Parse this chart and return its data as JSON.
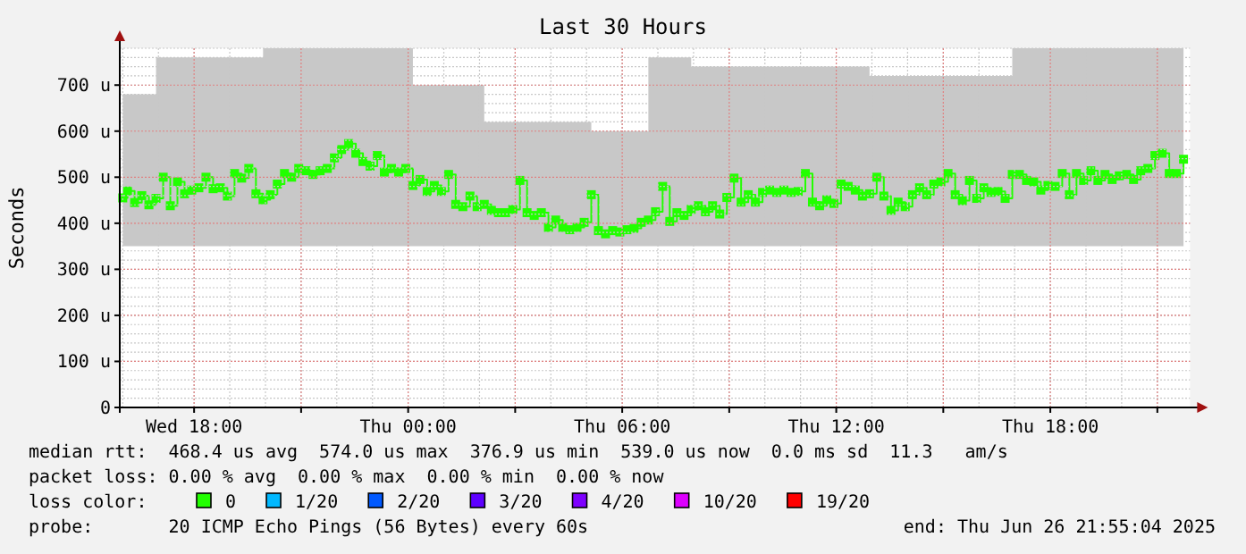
{
  "chart_data": {
    "type": "step",
    "title": "Last 30 Hours",
    "ylabel": "Seconds",
    "legend_title": "loss color:",
    "legend": "bottom",
    "grid": true,
    "marker": "square",
    "xlim": [
      "2025-06-25T15:55",
      "2025-06-26T21:55"
    ],
    "ylim": [
      0,
      780
    ],
    "xticks": [
      {
        "value": "2025-06-25T18:00",
        "label": "Wed 18:00"
      },
      {
        "value": "2025-06-25T21:00",
        "label": null
      },
      {
        "value": "2025-06-26T00:00",
        "label": "Thu 00:00"
      },
      {
        "value": "2025-06-26T03:00",
        "label": null
      },
      {
        "value": "2025-06-26T06:00",
        "label": "Thu 06:00"
      },
      {
        "value": "2025-06-26T09:00",
        "label": null
      },
      {
        "value": "2025-06-26T12:00",
        "label": "Thu 12:00"
      },
      {
        "value": "2025-06-26T15:00",
        "label": null
      },
      {
        "value": "2025-06-26T18:00",
        "label": "Thu 18:00"
      },
      {
        "value": "2025-06-26T21:00",
        "label": null
      }
    ],
    "yticks": [
      0,
      {
        "value": 100,
        "label": "100 u"
      },
      {
        "value": 200,
        "label": "200 u"
      },
      {
        "value": 300,
        "label": "300 u"
      },
      {
        "value": 400,
        "label": "400 u"
      },
      {
        "value": 500,
        "label": "500 u"
      },
      {
        "value": 600,
        "label": "600 u"
      },
      {
        "value": 700,
        "label": "700 u"
      }
    ],
    "x": [
      "2025-06-25T16:00",
      "2025-06-25T16:08",
      "2025-06-25T16:20",
      "2025-06-25T16:32",
      "2025-06-25T16:44",
      "2025-06-25T16:56",
      "2025-06-25T17:08",
      "2025-06-25T17:20",
      "2025-06-25T17:32",
      "2025-06-25T17:44",
      "2025-06-25T17:56",
      "2025-06-25T18:08",
      "2025-06-25T18:20",
      "2025-06-25T18:32",
      "2025-06-25T18:44",
      "2025-06-25T18:56",
      "2025-06-25T19:08",
      "2025-06-25T19:20",
      "2025-06-25T19:32",
      "2025-06-25T19:44",
      "2025-06-25T19:56",
      "2025-06-25T20:08",
      "2025-06-25T20:20",
      "2025-06-25T20:32",
      "2025-06-25T20:44",
      "2025-06-25T20:56",
      "2025-06-25T21:08",
      "2025-06-25T21:20",
      "2025-06-25T21:32",
      "2025-06-25T21:44",
      "2025-06-25T21:56",
      "2025-06-25T22:08",
      "2025-06-25T22:20",
      "2025-06-25T22:32",
      "2025-06-25T22:44",
      "2025-06-25T22:56",
      "2025-06-25T23:08",
      "2025-06-25T23:20",
      "2025-06-25T23:32",
      "2025-06-25T23:44",
      "2025-06-25T23:56",
      "2025-06-26T00:08",
      "2025-06-26T00:20",
      "2025-06-26T00:32",
      "2025-06-26T00:44",
      "2025-06-26T00:56",
      "2025-06-26T01:08",
      "2025-06-26T01:20",
      "2025-06-26T01:32",
      "2025-06-26T01:44",
      "2025-06-26T01:56",
      "2025-06-26T02:08",
      "2025-06-26T02:20",
      "2025-06-26T02:32",
      "2025-06-26T02:44",
      "2025-06-26T02:56",
      "2025-06-26T03:08",
      "2025-06-26T03:20",
      "2025-06-26T03:32",
      "2025-06-26T03:44",
      "2025-06-26T03:56",
      "2025-06-26T04:08",
      "2025-06-26T04:20",
      "2025-06-26T04:32",
      "2025-06-26T04:44",
      "2025-06-26T04:56",
      "2025-06-26T05:08",
      "2025-06-26T05:20",
      "2025-06-26T05:32",
      "2025-06-26T05:44",
      "2025-06-26T05:56",
      "2025-06-26T06:08",
      "2025-06-26T06:20",
      "2025-06-26T06:32",
      "2025-06-26T06:44",
      "2025-06-26T06:56",
      "2025-06-26T07:08",
      "2025-06-26T07:20",
      "2025-06-26T07:32",
      "2025-06-26T07:44",
      "2025-06-26T07:56",
      "2025-06-26T08:08",
      "2025-06-26T08:20",
      "2025-06-26T08:32",
      "2025-06-26T08:44",
      "2025-06-26T08:56",
      "2025-06-26T09:08",
      "2025-06-26T09:20",
      "2025-06-26T09:32",
      "2025-06-26T09:44",
      "2025-06-26T09:56",
      "2025-06-26T10:08",
      "2025-06-26T10:20",
      "2025-06-26T10:32",
      "2025-06-26T10:44",
      "2025-06-26T10:56",
      "2025-06-26T11:08",
      "2025-06-26T11:20",
      "2025-06-26T11:32",
      "2025-06-26T11:44",
      "2025-06-26T11:56",
      "2025-06-26T12:08",
      "2025-06-26T12:20",
      "2025-06-26T12:32",
      "2025-06-26T12:44",
      "2025-06-26T12:56",
      "2025-06-26T13:08",
      "2025-06-26T13:20",
      "2025-06-26T13:32",
      "2025-06-26T13:44",
      "2025-06-26T13:56",
      "2025-06-26T14:08",
      "2025-06-26T14:20",
      "2025-06-26T14:32",
      "2025-06-26T14:44",
      "2025-06-26T14:56",
      "2025-06-26T15:08",
      "2025-06-26T15:20",
      "2025-06-26T15:32",
      "2025-06-26T15:44",
      "2025-06-26T15:56",
      "2025-06-26T16:08",
      "2025-06-26T16:20",
      "2025-06-26T16:32",
      "2025-06-26T16:44",
      "2025-06-26T16:56",
      "2025-06-26T17:08",
      "2025-06-26T17:20",
      "2025-06-26T17:32",
      "2025-06-26T17:44",
      "2025-06-26T17:56",
      "2025-06-26T18:08",
      "2025-06-26T18:20",
      "2025-06-26T18:32",
      "2025-06-26T18:44",
      "2025-06-26T18:56",
      "2025-06-26T19:08",
      "2025-06-26T19:20",
      "2025-06-26T19:32",
      "2025-06-26T19:44",
      "2025-06-26T19:56",
      "2025-06-26T20:08",
      "2025-06-26T20:20",
      "2025-06-26T20:32",
      "2025-06-26T20:44",
      "2025-06-26T20:56",
      "2025-06-26T21:08",
      "2025-06-26T21:20",
      "2025-06-26T21:32",
      "2025-06-26T21:44"
    ],
    "series": [
      {
        "name": "0",
        "color": "#22ff00",
        "values": [
          455,
          470,
          445,
          460,
          440,
          454,
          500,
          438,
          490,
          464,
          472,
          477,
          500,
          475,
          477,
          459,
          508,
          498,
          519,
          464,
          451,
          462,
          485,
          508,
          500,
          519,
          514,
          506,
          514,
          519,
          542,
          560,
          573,
          552,
          534,
          524,
          547,
          511,
          519,
          511,
          519,
          482,
          495,
          469,
          482,
          469,
          506,
          441,
          436,
          459,
          436,
          441,
          428,
          423,
          423,
          430,
          493,
          423,
          417,
          423,
          391,
          407,
          391,
          386,
          391,
          402,
          462,
          384,
          377,
          384,
          381,
          386,
          389,
          402,
          407,
          425,
          480,
          404,
          423,
          417,
          430,
          438,
          425,
          438,
          420,
          456,
          498,
          446,
          462,
          446,
          467,
          472,
          467,
          472,
          467,
          469,
          508,
          446,
          438,
          451,
          443,
          485,
          480,
          472,
          459,
          464,
          500,
          459,
          428,
          446,
          436,
          462,
          477,
          462,
          485,
          490,
          508,
          462,
          449,
          493,
          454,
          477,
          467,
          469,
          454,
          506,
          506,
          493,
          490,
          472,
          482,
          480,
          508,
          462,
          508,
          493,
          514,
          493,
          506,
          495,
          503,
          506,
          495,
          514,
          519,
          547,
          552,
          508,
          508,
          539
        ],
        "lower": [
          350,
          350,
          350,
          350,
          350,
          350,
          350,
          350,
          350,
          350,
          350,
          350,
          350,
          350,
          350,
          350,
          350,
          350,
          350,
          350,
          350,
          350,
          350,
          350,
          350,
          350,
          350,
          350,
          350,
          350,
          350,
          350,
          350,
          350,
          350,
          350,
          350,
          350,
          350,
          350,
          350,
          350,
          350,
          350,
          350,
          350,
          350,
          350,
          350,
          350,
          350,
          350,
          350,
          350,
          350,
          350,
          350,
          350,
          350,
          350,
          350,
          350,
          350,
          350,
          350,
          350,
          350,
          350,
          350,
          350,
          350,
          350,
          350,
          350,
          350,
          350,
          350,
          350,
          350,
          350,
          350,
          350,
          350,
          350,
          350,
          350,
          350,
          350,
          350,
          350,
          350,
          350,
          350,
          350,
          350,
          350,
          350,
          350,
          350,
          350,
          350,
          350,
          350,
          350,
          350,
          350,
          350,
          350,
          350,
          350,
          350,
          350,
          350,
          350,
          350,
          350,
          350,
          350,
          350,
          350,
          350,
          350,
          350,
          350,
          350,
          350,
          350,
          350,
          350,
          350,
          350,
          350,
          350,
          350,
          350,
          350,
          350,
          350,
          350,
          350,
          350,
          350,
          350,
          350,
          350,
          350,
          350,
          350,
          350,
          350
        ],
        "upper": [
          680,
          680,
          680,
          680,
          680,
          760,
          760,
          760,
          760,
          760,
          760,
          760,
          760,
          760,
          760,
          760,
          760,
          760,
          760,
          760,
          780,
          780,
          780,
          780,
          780,
          780,
          780,
          780,
          780,
          780,
          780,
          780,
          780,
          780,
          780,
          780,
          780,
          780,
          780,
          780,
          780,
          700,
          700,
          700,
          700,
          700,
          700,
          700,
          700,
          700,
          700,
          620,
          620,
          620,
          620,
          620,
          620,
          620,
          620,
          620,
          620,
          620,
          620,
          620,
          620,
          620,
          600,
          600,
          600,
          600,
          600,
          600,
          600,
          600,
          760,
          760,
          760,
          760,
          760,
          760,
          740,
          740,
          740,
          740,
          740,
          740,
          740,
          740,
          740,
          740,
          740,
          740,
          740,
          740,
          740,
          740,
          740,
          740,
          740,
          740,
          740,
          740,
          740,
          740,
          740,
          720,
          720,
          720,
          720,
          720,
          720,
          720,
          720,
          720,
          720,
          720,
          720,
          720,
          720,
          720,
          720,
          720,
          720,
          720,
          720,
          780,
          780,
          780,
          780,
          780,
          780,
          780,
          780,
          780,
          780,
          780,
          780,
          780,
          780,
          780,
          780,
          780,
          780,
          780,
          780,
          780,
          780,
          780,
          780,
          780
        ]
      },
      {
        "name": "1/20",
        "color": "#00b8ff",
        "values": [
          null,
          null,
          null,
          null,
          null,
          null,
          null,
          null,
          null,
          null,
          null,
          null,
          null,
          null,
          null,
          null,
          null,
          null,
          null,
          null,
          null,
          null,
          null,
          null,
          null,
          null,
          null,
          null,
          null,
          null,
          null,
          null,
          null,
          null,
          null,
          null,
          null,
          null,
          null,
          null,
          null,
          null,
          null,
          null,
          null,
          null,
          null,
          null,
          null,
          null,
          null,
          null,
          null,
          null,
          null,
          null,
          null,
          null,
          null,
          null,
          null,
          null,
          null,
          null,
          null,
          null,
          null,
          null,
          null,
          null,
          null,
          null,
          null,
          null,
          null,
          null,
          null,
          null,
          null,
          null,
          null,
          null,
          null,
          null,
          null,
          null,
          null,
          null,
          null,
          null,
          null,
          null,
          null,
          null,
          null,
          null,
          null,
          null,
          null,
          null,
          null,
          null,
          null,
          null,
          null,
          null,
          null,
          null,
          null,
          null,
          null,
          null,
          null,
          null,
          null,
          null,
          null,
          null,
          null,
          null,
          null,
          null,
          null,
          null,
          null,
          null,
          null,
          null,
          null,
          null,
          null,
          null,
          null,
          null,
          null,
          null,
          null,
          null,
          null,
          null,
          null,
          null,
          null,
          null,
          null,
          null,
          null,
          null,
          null,
          null
        ]
      },
      {
        "name": "2/20",
        "color": "#0059ff",
        "values": [
          null,
          null,
          null,
          null,
          null,
          null,
          null,
          null,
          null,
          null,
          null,
          null,
          null,
          null,
          null,
          null,
          null,
          null,
          null,
          null,
          null,
          null,
          null,
          null,
          null,
          null,
          null,
          null,
          null,
          null,
          null,
          null,
          null,
          null,
          null,
          null,
          null,
          null,
          null,
          null,
          null,
          null,
          null,
          null,
          null,
          null,
          null,
          null,
          null,
          null,
          null,
          null,
          null,
          null,
          null,
          null,
          null,
          null,
          null,
          null,
          null,
          null,
          null,
          null,
          null,
          null,
          null,
          null,
          null,
          null,
          null,
          null,
          null,
          null,
          null,
          null,
          null,
          null,
          null,
          null,
          null,
          null,
          null,
          null,
          null,
          null,
          null,
          null,
          null,
          null,
          null,
          null,
          null,
          null,
          null,
          null,
          null,
          null,
          null,
          null,
          null,
          null,
          null,
          null,
          null,
          null,
          null,
          null,
          null,
          null,
          null,
          null,
          null,
          null,
          null,
          null,
          null,
          null,
          null,
          null,
          null,
          null,
          null,
          null,
          null,
          null,
          null,
          null,
          null,
          null,
          null,
          null,
          null,
          null,
          null,
          null,
          null,
          null,
          null,
          null,
          null,
          null,
          null,
          null,
          null,
          null,
          null,
          null,
          null,
          null
        ]
      },
      {
        "name": "3/20",
        "color": "#5e00ff",
        "values": [
          null,
          null,
          null,
          null,
          null,
          null,
          null,
          null,
          null,
          null,
          null,
          null,
          null,
          null,
          null,
          null,
          null,
          null,
          null,
          null,
          null,
          null,
          null,
          null,
          null,
          null,
          null,
          null,
          null,
          null,
          null,
          null,
          null,
          null,
          null,
          null,
          null,
          null,
          null,
          null,
          null,
          null,
          null,
          null,
          null,
          null,
          null,
          null,
          null,
          null,
          null,
          null,
          null,
          null,
          null,
          null,
          null,
          null,
          null,
          null,
          null,
          null,
          null,
          null,
          null,
          null,
          null,
          null,
          null,
          null,
          null,
          null,
          null,
          null,
          null,
          null,
          null,
          null,
          null,
          null,
          null,
          null,
          null,
          null,
          null,
          null,
          null,
          null,
          null,
          null,
          null,
          null,
          null,
          null,
          null,
          null,
          null,
          null,
          null,
          null,
          null,
          null,
          null,
          null,
          null,
          null,
          null,
          null,
          null,
          null,
          null,
          null,
          null,
          null,
          null,
          null,
          null,
          null,
          null,
          null,
          null,
          null,
          null,
          null,
          null,
          null,
          null,
          null,
          null,
          null,
          null,
          null,
          null,
          null,
          null,
          null,
          null,
          null,
          null,
          null,
          null,
          null,
          null,
          null,
          null,
          null,
          null,
          null,
          null,
          null
        ]
      },
      {
        "name": "4/20",
        "color": "#7e00ff",
        "values": [
          null,
          null,
          null,
          null,
          null,
          null,
          null,
          null,
          null,
          null,
          null,
          null,
          null,
          null,
          null,
          null,
          null,
          null,
          null,
          null,
          null,
          null,
          null,
          null,
          null,
          null,
          null,
          null,
          null,
          null,
          null,
          null,
          null,
          null,
          null,
          null,
          null,
          null,
          null,
          null,
          null,
          null,
          null,
          null,
          null,
          null,
          null,
          null,
          null,
          null,
          null,
          null,
          null,
          null,
          null,
          null,
          null,
          null,
          null,
          null,
          null,
          null,
          null,
          null,
          null,
          null,
          null,
          null,
          null,
          null,
          null,
          null,
          null,
          null,
          null,
          null,
          null,
          null,
          null,
          null,
          null,
          null,
          null,
          null,
          null,
          null,
          null,
          null,
          null,
          null,
          null,
          null,
          null,
          null,
          null,
          null,
          null,
          null,
          null,
          null,
          null,
          null,
          null,
          null,
          null,
          null,
          null,
          null,
          null,
          null,
          null,
          null,
          null,
          null,
          null,
          null,
          null,
          null,
          null,
          null,
          null,
          null,
          null,
          null,
          null,
          null,
          null,
          null,
          null,
          null,
          null,
          null,
          null,
          null,
          null,
          null,
          null,
          null,
          null,
          null,
          null,
          null,
          null,
          null,
          null,
          null,
          null,
          null,
          null,
          null
        ]
      },
      {
        "name": "10/20",
        "color": "#dd00ff",
        "values": [
          null,
          null,
          null,
          null,
          null,
          null,
          null,
          null,
          null,
          null,
          null,
          null,
          null,
          null,
          null,
          null,
          null,
          null,
          null,
          null,
          null,
          null,
          null,
          null,
          null,
          null,
          null,
          null,
          null,
          null,
          null,
          null,
          null,
          null,
          null,
          null,
          null,
          null,
          null,
          null,
          null,
          null,
          null,
          null,
          null,
          null,
          null,
          null,
          null,
          null,
          null,
          null,
          null,
          null,
          null,
          null,
          null,
          null,
          null,
          null,
          null,
          null,
          null,
          null,
          null,
          null,
          null,
          null,
          null,
          null,
          null,
          null,
          null,
          null,
          null,
          null,
          null,
          null,
          null,
          null,
          null,
          null,
          null,
          null,
          null,
          null,
          null,
          null,
          null,
          null,
          null,
          null,
          null,
          null,
          null,
          null,
          null,
          null,
          null,
          null,
          null,
          null,
          null,
          null,
          null,
          null,
          null,
          null,
          null,
          null,
          null,
          null,
          null,
          null,
          null,
          null,
          null,
          null,
          null,
          null,
          null,
          null,
          null,
          null,
          null,
          null,
          null,
          null,
          null,
          null,
          null,
          null,
          null,
          null,
          null,
          null,
          null,
          null,
          null,
          null,
          null,
          null,
          null,
          null,
          null,
          null,
          null,
          null,
          null,
          null
        ]
      },
      {
        "name": "19/20",
        "color": "#ff0000",
        "values": [
          null,
          null,
          null,
          null,
          null,
          null,
          null,
          null,
          null,
          null,
          null,
          null,
          null,
          null,
          null,
          null,
          null,
          null,
          null,
          null,
          null,
          null,
          null,
          null,
          null,
          null,
          null,
          null,
          null,
          null,
          null,
          null,
          null,
          null,
          null,
          null,
          null,
          null,
          null,
          null,
          null,
          null,
          null,
          null,
          null,
          null,
          null,
          null,
          null,
          null,
          null,
          null,
          null,
          null,
          null,
          null,
          null,
          null,
          null,
          null,
          null,
          null,
          null,
          null,
          null,
          null,
          null,
          null,
          null,
          null,
          null,
          null,
          null,
          null,
          null,
          null,
          null,
          null,
          null,
          null,
          null,
          null,
          null,
          null,
          null,
          null,
          null,
          null,
          null,
          null,
          null,
          null,
          null,
          null,
          null,
          null,
          null,
          null,
          null,
          null,
          null,
          null,
          null,
          null,
          null,
          null,
          null,
          null,
          null,
          null,
          null,
          null,
          null,
          null,
          null,
          null,
          null,
          null,
          null,
          null,
          null,
          null,
          null,
          null,
          null,
          null,
          null,
          null,
          null,
          null,
          null,
          null,
          null,
          null,
          null,
          null,
          null,
          null,
          null,
          null,
          null,
          null,
          null,
          null,
          null,
          null,
          null,
          null,
          null,
          null
        ]
      }
    ],
    "annotations": [
      "median rtt:  468.4 us avg  574.0 us max  376.9 us min  539.0 us now  0.0 ms sd  11.3   am/s",
      "packet loss: 0.00 % avg  0.00 % max  0.00 % min  0.00 % now",
      "probe:       20 ICMP Echo Pings (56 Bytes) every 60s",
      "end: Thu Jun 26 21:55:04 2025"
    ]
  }
}
